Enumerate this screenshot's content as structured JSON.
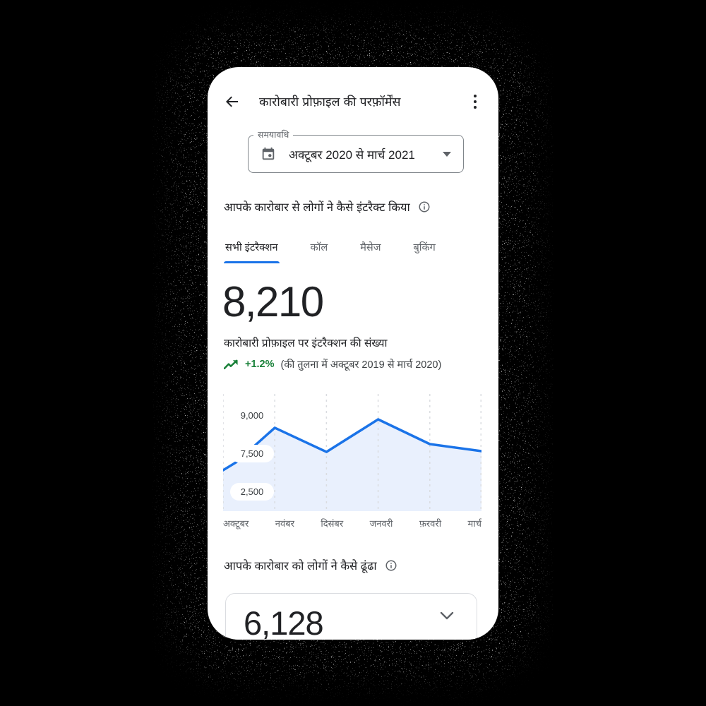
{
  "colors": {
    "accent_blue": "#1a73e8",
    "chart_fill": "#e9f0fd",
    "green": "#188038",
    "text_dark": "#202124",
    "text_gray": "#5f6368",
    "gridline": "#dadce0"
  },
  "header": {
    "title": "कारोबारी प्रोफ़ाइल की परफ़ॉर्मेंस",
    "back_icon": "arrow-left",
    "menu_icon": "kebab-menu"
  },
  "period_field": {
    "label": "समयावधि",
    "value": "अक्टूबर 2020 से मार्च 2021",
    "leading_icon": "calendar-icon",
    "trailing_icon": "caret-down-icon"
  },
  "interactions": {
    "heading": "आपके कारोबार से लोगों ने कैसे इंटरैक्ट किया",
    "info_icon": "info-icon",
    "tabs": [
      {
        "label": "सभी इंटरैक्शन",
        "active": true
      },
      {
        "label": "कॉल",
        "active": false
      },
      {
        "label": "मैसेज",
        "active": false
      },
      {
        "label": "बुकिंग",
        "active": false
      }
    ],
    "total": "8,210",
    "caption": "कारोबारी प्रोफ़ाइल पर इंटरैक्शन की संख्या",
    "trend": {
      "icon": "trending-up-icon",
      "delta": "+1.2%",
      "note": "(की तुलना में अक्टूबर 2019 से मार्च 2020)"
    }
  },
  "chart_data": {
    "type": "area",
    "title": "",
    "xlabel": "",
    "ylabel": "",
    "categories": [
      "अक्टूबर",
      "नवंबर",
      "दिसंबर",
      "जनवरी",
      "फ़रवरी",
      "मार्च"
    ],
    "values": [
      6860,
      8530,
      7580,
      8860,
      7890,
      7610
    ],
    "line_x_months": [
      0,
      0.25,
      1,
      2,
      3,
      4,
      5
    ],
    "line_values": [
      6860,
      7170,
      8530,
      7580,
      8860,
      7890,
      7610
    ],
    "y_ticks": [
      {
        "label": "9,000",
        "value": 9000
      },
      {
        "label": "7,500",
        "value": 7500
      },
      {
        "label": "2,500",
        "value": 2500
      }
    ],
    "grid": "vertical-dashed",
    "legend": "none",
    "line_color": "#1a73e8",
    "fill_color": "#e9f0fd"
  },
  "discovery": {
    "heading": "आपके कारोबार को लोगों ने कैसे ढूंढा",
    "info_icon": "info-icon",
    "value": "6,128",
    "expand_icon": "chevron-down-icon"
  }
}
